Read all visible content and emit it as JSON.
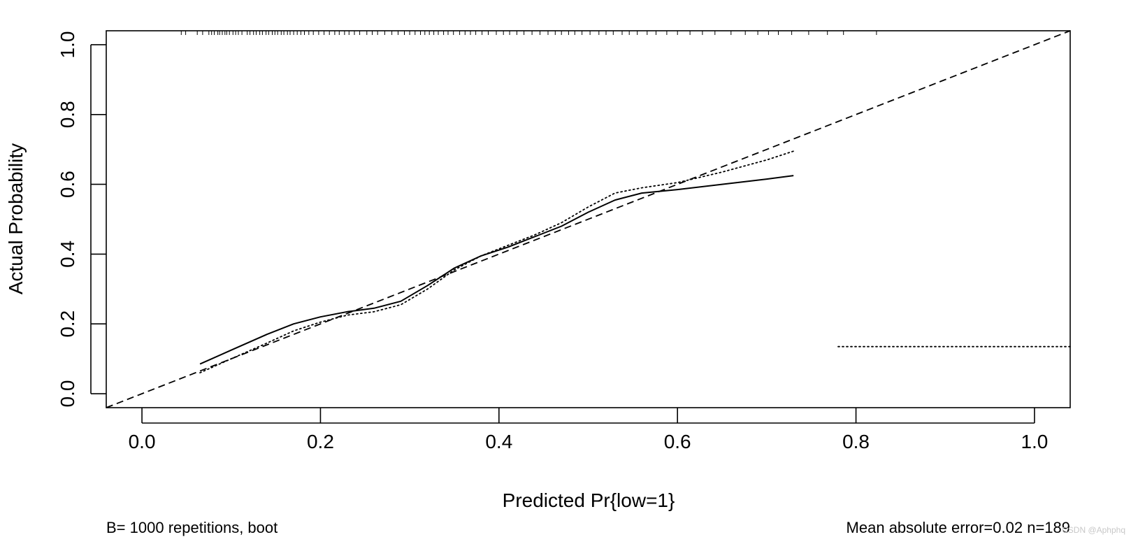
{
  "chart_data": {
    "type": "line",
    "xlabel": "Predicted Pr{low=1}",
    "ylabel": "Actual Probability",
    "xlim": [
      -0.04,
      1.04
    ],
    "ylim": [
      -0.04,
      1.04
    ],
    "x_ticks": [
      "0.0",
      "0.2",
      "0.4",
      "0.6",
      "0.8",
      "1.0"
    ],
    "y_ticks": [
      "0.0",
      "0.2",
      "0.4",
      "0.6",
      "0.8",
      "1.0"
    ],
    "grid": false,
    "series": [
      {
        "style": "dashed",
        "x": [
          -0.04,
          1.04
        ],
        "y": [
          -0.04,
          1.04
        ]
      },
      {
        "style": "solid",
        "x": [
          0.065,
          0.1,
          0.14,
          0.17,
          0.2,
          0.23,
          0.26,
          0.29,
          0.32,
          0.35,
          0.38,
          0.41,
          0.44,
          0.47,
          0.5,
          0.53,
          0.56,
          0.6,
          0.65,
          0.7,
          0.73
        ],
        "y": [
          0.085,
          0.125,
          0.17,
          0.2,
          0.22,
          0.235,
          0.245,
          0.265,
          0.31,
          0.36,
          0.395,
          0.42,
          0.45,
          0.48,
          0.52,
          0.555,
          0.575,
          0.585,
          0.6,
          0.615,
          0.625
        ]
      },
      {
        "style": "dotted",
        "x": [
          0.065,
          0.1,
          0.14,
          0.17,
          0.2,
          0.23,
          0.26,
          0.29,
          0.32,
          0.35,
          0.38,
          0.41,
          0.44,
          0.47,
          0.5,
          0.53,
          0.56,
          0.6,
          0.65,
          0.7,
          0.73
        ],
        "y": [
          0.06,
          0.1,
          0.145,
          0.18,
          0.205,
          0.225,
          0.235,
          0.255,
          0.3,
          0.355,
          0.395,
          0.425,
          0.455,
          0.49,
          0.535,
          0.575,
          0.59,
          0.605,
          0.635,
          0.67,
          0.695
        ]
      },
      {
        "style": "dotted",
        "x": [
          0.78,
          1.04
        ],
        "y": [
          0.135,
          0.135
        ]
      }
    ],
    "rug_top": [
      0.044,
      0.049,
      0.062,
      0.068,
      0.075,
      0.078,
      0.081,
      0.085,
      0.087,
      0.09,
      0.093,
      0.095,
      0.098,
      0.102,
      0.105,
      0.108,
      0.112,
      0.118,
      0.121,
      0.125,
      0.128,
      0.132,
      0.135,
      0.139,
      0.142,
      0.146,
      0.149,
      0.152,
      0.156,
      0.159,
      0.163,
      0.166,
      0.17,
      0.174,
      0.178,
      0.182,
      0.187,
      0.192,
      0.198,
      0.204,
      0.21,
      0.216,
      0.221,
      0.227,
      0.232,
      0.238,
      0.244,
      0.252,
      0.258,
      0.264,
      0.272,
      0.28,
      0.287,
      0.294,
      0.3,
      0.306,
      0.312,
      0.317,
      0.322,
      0.327,
      0.332,
      0.338,
      0.343,
      0.349,
      0.356,
      0.362,
      0.368,
      0.374,
      0.381,
      0.388,
      0.397,
      0.405,
      0.412,
      0.42,
      0.428,
      0.437,
      0.446,
      0.455,
      0.463,
      0.47,
      0.478,
      0.485,
      0.493,
      0.502,
      0.512,
      0.52,
      0.528,
      0.538,
      0.546,
      0.555,
      0.566,
      0.576,
      0.588,
      0.6,
      0.614,
      0.628,
      0.642,
      0.66,
      0.676,
      0.69,
      0.702,
      0.713,
      0.728,
      0.747,
      0.768,
      0.786,
      0.823
    ],
    "footer_left": "B= 1000 repetitions, boot",
    "footer_right": "Mean absolute error=0.02 n=189"
  },
  "watermark": "CSDN @Aphphq"
}
